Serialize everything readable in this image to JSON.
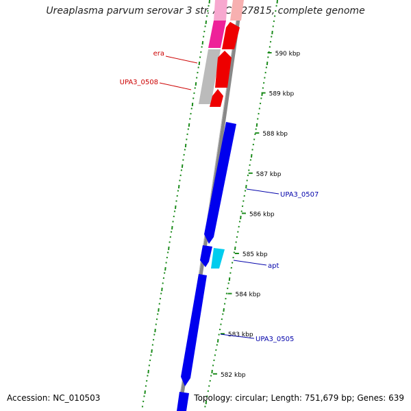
{
  "title": "Ureaplasma parvum serovar 3 str. ATCC 27815, complete genome",
  "footer": {
    "accession": "Accession: NC_010503",
    "summary": "Topology: circular; Length: 751,679 bp; Genes: 639"
  },
  "ticks": [
    {
      "label": "590 kbp",
      "kbp": 590
    },
    {
      "label": "589 kbp",
      "kbp": 589
    },
    {
      "label": "588 kbp",
      "kbp": 588
    },
    {
      "label": "587 kbp",
      "kbp": 587
    },
    {
      "label": "586 kbp",
      "kbp": 586
    },
    {
      "label": "585 kbp",
      "kbp": 585
    },
    {
      "label": "584 kbp",
      "kbp": 584
    },
    {
      "label": "583 kbp",
      "kbp": 583
    },
    {
      "label": "582 kbp",
      "kbp": 582
    }
  ],
  "gene_labels": [
    {
      "label": "era",
      "color": "#cc0000"
    },
    {
      "label": "UPA3_0508",
      "color": "#cc0000"
    },
    {
      "label": "UPA3_0507",
      "color": "#0000aa"
    },
    {
      "label": "apt",
      "color": "#0000aa"
    },
    {
      "label": "UPA3_0505",
      "color": "#0000aa"
    }
  ],
  "colors": {
    "backbone": "#888888",
    "forward_gene": "#ee0000",
    "reverse_gene": "#0000ee",
    "highlight_gene": "#00ccee",
    "pink_gene": "#ee2299",
    "grey_gene": "#bbbbbb",
    "gc_dots": "#1a8a1a"
  }
}
